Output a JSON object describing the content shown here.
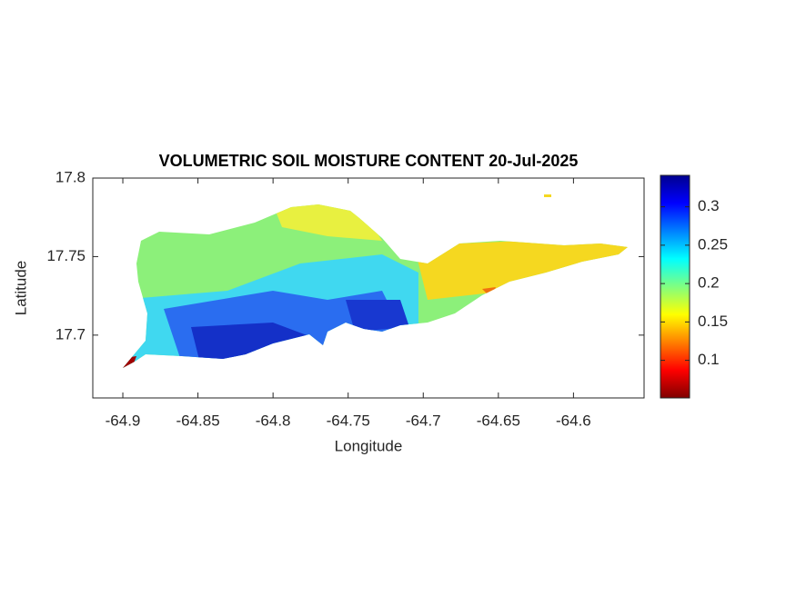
{
  "chart_data": {
    "type": "heatmap",
    "title": "VOLUMETRIC SOIL MOISTURE CONTENT 20-Jul-2025",
    "xlabel": "Longitude",
    "ylabel": "Latitude",
    "xlim": [
      -64.92,
      -64.553
    ],
    "xticks": [
      -64.9,
      -64.85,
      -64.8,
      -64.75,
      -64.7,
      -64.65,
      -64.6
    ],
    "ylim": [
      17.66,
      17.8
    ],
    "yticks": [
      17.7,
      17.75,
      17.8
    ],
    "colorbar": {
      "colormap": "jet",
      "clim": [
        0.051,
        0.341
      ],
      "ticks": [
        0.1,
        0.15,
        0.2,
        0.25,
        0.3
      ]
    }
  }
}
